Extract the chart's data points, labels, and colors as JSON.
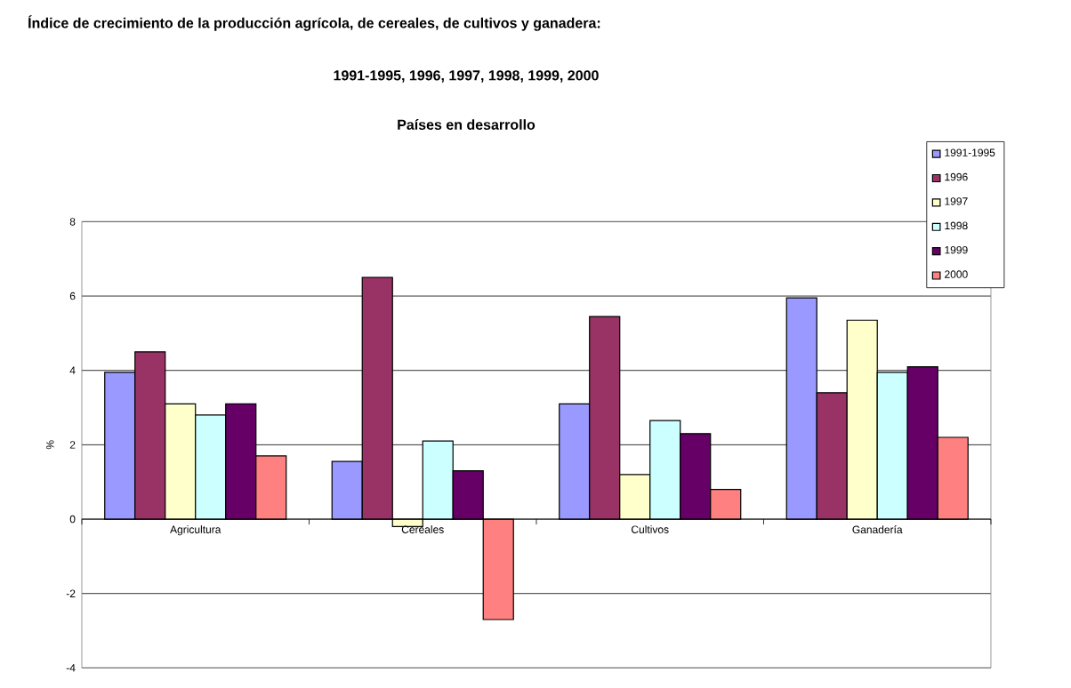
{
  "chart_data": {
    "type": "bar",
    "title": "Índice de crecimiento de la producción agrícola, de cereales, de cultivos y ganadera:",
    "subtitle": "1991-1995, 1996, 1997, 1998, 1999, 2000",
    "annotations": [
      "Países en desarrollo"
    ],
    "ylabel": "%",
    "categories": [
      "Agricultura",
      "Cereales",
      "Cultivos",
      "Ganadería"
    ],
    "series": [
      {
        "name": "1991-1995",
        "color": "#9999ff",
        "values": [
          3.95,
          1.55,
          3.1,
          5.95
        ]
      },
      {
        "name": "1996",
        "color": "#993366",
        "values": [
          4.5,
          6.5,
          5.45,
          3.4
        ]
      },
      {
        "name": "1997",
        "color": "#ffffcc",
        "values": [
          3.1,
          -0.2,
          1.2,
          5.35
        ]
      },
      {
        "name": "1998",
        "color": "#ccffff",
        "values": [
          2.8,
          2.1,
          2.65,
          3.95
        ]
      },
      {
        "name": "1999",
        "color": "#660066",
        "values": [
          3.1,
          1.3,
          2.3,
          4.1
        ]
      },
      {
        "name": "2000",
        "color": "#ff8080",
        "values": [
          1.7,
          -2.7,
          0.8,
          2.2
        ]
      }
    ],
    "ylim": [
      -4,
      8
    ],
    "yticks": [
      -4,
      -2,
      0,
      2,
      4,
      6,
      8
    ],
    "grid": "y",
    "legend": "top right"
  }
}
